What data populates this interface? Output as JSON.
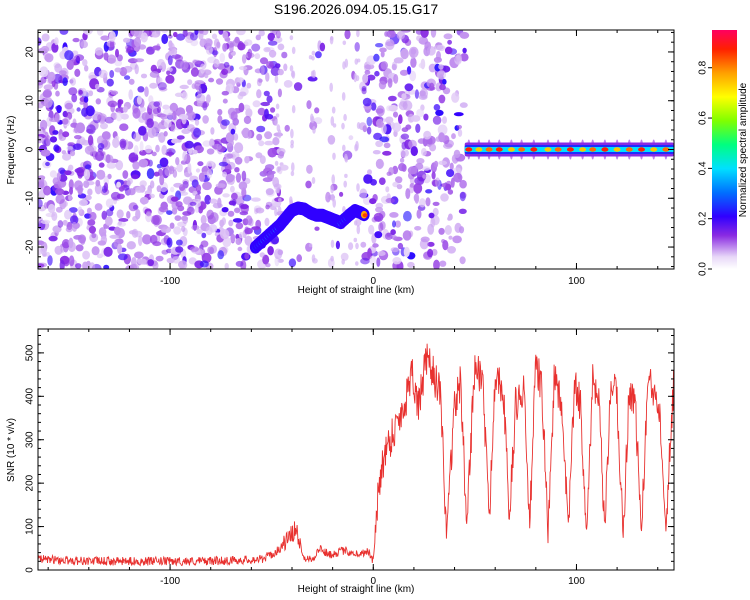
{
  "title": "S196.2026.094.05.15.G17",
  "chart_data": [
    {
      "type": "heatmap",
      "xlabel": "Height of straight line (km)",
      "ylabel": "Frequency (Hz)",
      "xlim": [
        -165,
        148
      ],
      "ylim": [
        -24.5,
        24.5
      ],
      "xticks": [
        -100,
        0,
        100
      ],
      "yticks": [
        -20,
        -10,
        0,
        10,
        20
      ],
      "xtick_labels": [
        "-100",
        "0",
        "100"
      ],
      "ytick_labels": [
        "-20",
        "-10",
        "0",
        "10",
        "20"
      ],
      "colorbar": {
        "label": "Normalized spectral amplitude",
        "range": [
          0,
          0.95
        ],
        "ticks": [
          0.0,
          0.2,
          0.4,
          0.6,
          0.8
        ],
        "tick_labels": [
          "0.0",
          "0.2",
          "0.4",
          "0.6",
          "0.8"
        ]
      },
      "features": {
        "noise_regions_km": [
          [
            -165,
            -60
          ],
          [
            -58,
            45
          ]
        ],
        "arc_track": [
          {
            "x": -58,
            "y": -20,
            "v": 0.3
          },
          {
            "x": -54,
            "y": -18.5,
            "v": 0.4
          },
          {
            "x": -50,
            "y": -17,
            "v": 0.35
          },
          {
            "x": -46,
            "y": -15.5,
            "v": 0.45
          },
          {
            "x": -43,
            "y": -14,
            "v": 0.3
          },
          {
            "x": -40,
            "y": -12.5,
            "v": 0.35
          },
          {
            "x": -37,
            "y": -12,
            "v": 0.5
          },
          {
            "x": -34,
            "y": -12.2,
            "v": 0.45
          },
          {
            "x": -31,
            "y": -13,
            "v": 0.4
          },
          {
            "x": -28,
            "y": -13.5,
            "v": 0.45
          },
          {
            "x": -25,
            "y": -13.5,
            "v": 0.4
          },
          {
            "x": -22,
            "y": -14,
            "v": 0.45
          },
          {
            "x": -19,
            "y": -14.5,
            "v": 0.35
          },
          {
            "x": -16,
            "y": -15,
            "v": 0.4
          },
          {
            "x": -12,
            "y": -13.5,
            "v": 0.3
          },
          {
            "x": -9,
            "y": -12.5,
            "v": 0.4
          },
          {
            "x": -6,
            "y": -13,
            "v": 0.7
          },
          {
            "x": -4,
            "y": -13.5,
            "v": 0.85
          }
        ],
        "horizontal_track": {
          "x_start": 45,
          "x_end": 148,
          "y": 0,
          "peak_x": [
            47,
            52,
            57,
            62,
            68,
            73,
            79,
            86,
            91,
            97,
            103,
            108,
            114,
            120,
            126,
            132,
            138,
            144
          ]
        }
      }
    },
    {
      "type": "line",
      "xlabel": "Height of straight line (km)",
      "ylabel": "SNR (10 * v/v)",
      "xlim": [
        -165,
        148
      ],
      "ylim": [
        0,
        555
      ],
      "xticks": [
        -100,
        0,
        100
      ],
      "yticks": [
        0,
        100,
        200,
        300,
        400,
        500
      ],
      "xtick_labels": [
        "-100",
        "0",
        "100"
      ],
      "ytick_labels": [
        "0",
        "100",
        "200",
        "300",
        "400",
        "500"
      ],
      "series": [
        {
          "name": "SNR",
          "color": "#e8312f",
          "x": [
            -165,
            -150,
            -130,
            -110,
            -90,
            -70,
            -55,
            -48,
            -42,
            -38,
            -36,
            -34,
            -30,
            -26,
            -22,
            -18,
            -14,
            -10,
            -6,
            -4,
            -2,
            0,
            2,
            4,
            8,
            12,
            16,
            19,
            22,
            26,
            30,
            33,
            36,
            40,
            43,
            46,
            50,
            54,
            57,
            60,
            64,
            67,
            70,
            74,
            77,
            80,
            83,
            86,
            89,
            92,
            96,
            99,
            102,
            105,
            108,
            111,
            114,
            117,
            120,
            123,
            126,
            129,
            132,
            135,
            138,
            141,
            144,
            148
          ],
          "values": [
            25,
            22,
            20,
            20,
            20,
            22,
            25,
            40,
            70,
            95,
            60,
            30,
            25,
            50,
            35,
            40,
            45,
            40,
            35,
            45,
            40,
            20,
            150,
            240,
            300,
            340,
            390,
            470,
            370,
            480,
            450,
            400,
            90,
            380,
            430,
            100,
            480,
            430,
            110,
            460,
            420,
            110,
            380,
            410,
            110,
            470,
            420,
            80,
            440,
            400,
            100,
            420,
            380,
            90,
            430,
            380,
            90,
            440,
            390,
            80,
            420,
            380,
            80,
            430,
            410,
            380,
            100,
            450
          ]
        }
      ]
    }
  ]
}
